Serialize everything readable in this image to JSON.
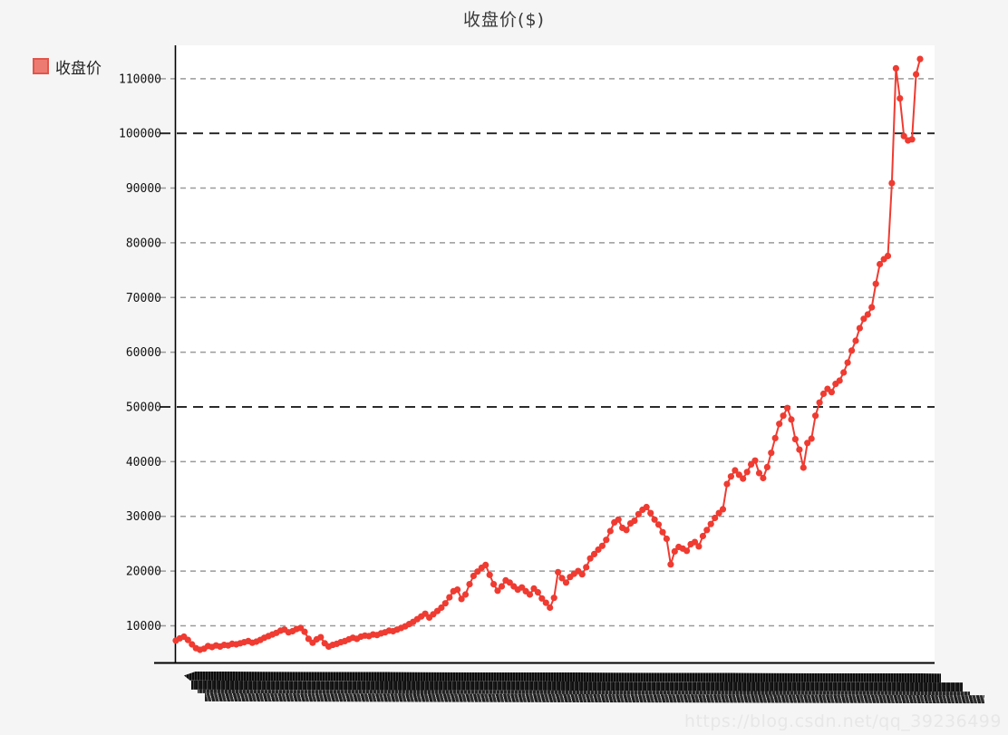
{
  "page": {
    "background": "#f5f5f5",
    "watermark": "https://blog.csdn.net/qq_39236499"
  },
  "legend": {
    "label": "收盘价",
    "swatch_fill": "#ee7b72",
    "swatch_border": "#e0564c"
  },
  "chart_data": {
    "type": "line",
    "title": "收盘价($)",
    "xlabel": "",
    "ylabel": "",
    "legend_entries": [
      "收盘价"
    ],
    "legend_position": "top-left",
    "grid": true,
    "series_color": "#ef3b31",
    "marker": "circle",
    "ylim": [
      3200,
      116100
    ],
    "yticks": [
      10000,
      20000,
      30000,
      40000,
      50000,
      60000,
      70000,
      80000,
      90000,
      100000,
      110000
    ],
    "bold_gridlines": [
      50000,
      100000
    ],
    "x_axis_note": "hundreds of overlapping rotated date labels, illegible in the pixels (rendered as a dark smear band)",
    "series": [
      {
        "name": "收盘价",
        "values": [
          7300,
          7700,
          8000,
          7400,
          6600,
          5900,
          5600,
          5800,
          6300,
          6100,
          6400,
          6200,
          6500,
          6400,
          6700,
          6600,
          6800,
          7000,
          7200,
          6900,
          7100,
          7400,
          7800,
          8100,
          8400,
          8700,
          9100,
          9300,
          8800,
          9000,
          9400,
          9600,
          8900,
          7600,
          6900,
          7500,
          7900,
          6800,
          6200,
          6500,
          6700,
          7000,
          7200,
          7500,
          7800,
          7600,
          8000,
          8200,
          8100,
          8400,
          8300,
          8600,
          8800,
          9100,
          9000,
          9300,
          9600,
          9900,
          10300,
          10700,
          11200,
          11700,
          12200,
          11500,
          12100,
          12700,
          13300,
          14100,
          15200,
          16300,
          16600,
          14900,
          15700,
          17600,
          19100,
          19900,
          20600,
          21100,
          19300,
          17600,
          16400,
          17200,
          18300,
          17900,
          17200,
          16600,
          17000,
          16300,
          15700,
          16800,
          16100,
          15000,
          14200,
          13300,
          15100,
          19800,
          18700,
          17900,
          18900,
          19500,
          20000,
          19400,
          20700,
          22300,
          23100,
          23900,
          24600,
          25700,
          27300,
          28900,
          29400,
          27900,
          27500,
          28700,
          29200,
          30400,
          31200,
          31700,
          30600,
          29400,
          28500,
          27100,
          25900,
          21200,
          23600,
          24400,
          24100,
          23700,
          24900,
          25300,
          24500,
          26400,
          27500,
          28600,
          29700,
          30600,
          31300,
          35900,
          37300,
          38400,
          37600,
          36900,
          38100,
          39500,
          40200,
          37900,
          37000,
          39000,
          41600,
          44300,
          46900,
          48400,
          49800,
          47700,
          44100,
          42200,
          38900,
          43400,
          44200,
          48400,
          50800,
          52400,
          53300,
          52700,
          54200,
          54800,
          56300,
          58100,
          60300,
          62100,
          64400,
          66100,
          66900,
          68200,
          72500,
          76100,
          77000,
          77600,
          90900,
          111900,
          106400,
          99500,
          98700,
          98900,
          110800,
          113600
        ]
      }
    ]
  },
  "style": {
    "grid_color": "#9a9a9a",
    "grid_bold_color": "#2b2b2b",
    "axis_color": "#000000",
    "tick_label_color": "#111111",
    "plot_bg": "#ffffff"
  }
}
